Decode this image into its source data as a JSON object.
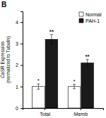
{
  "chart_data": {
    "type": "bar",
    "title": "B",
    "categories": [
      "Total",
      "Memb"
    ],
    "y_label": "CaSR Expression\n(normalized to Tubulin)",
    "ylim": [
      0,
      4.5
    ],
    "yticks": [
      0,
      1,
      2,
      3,
      4
    ],
    "grid": false,
    "legend": "upper right",
    "series": [
      {
        "name": "Normal",
        "color": "#ffffff",
        "values": [
          1.0,
          1.0
        ],
        "errors": [
          0.12,
          0.1
        ],
        "annotations": [
          "*",
          "*"
        ]
      },
      {
        "name": "PAH-1",
        "color": "#1a1a1a",
        "values": [
          3.2,
          2.1
        ],
        "errors": [
          0.22,
          0.16
        ],
        "annotations": [
          "**",
          "**"
        ]
      }
    ]
  }
}
